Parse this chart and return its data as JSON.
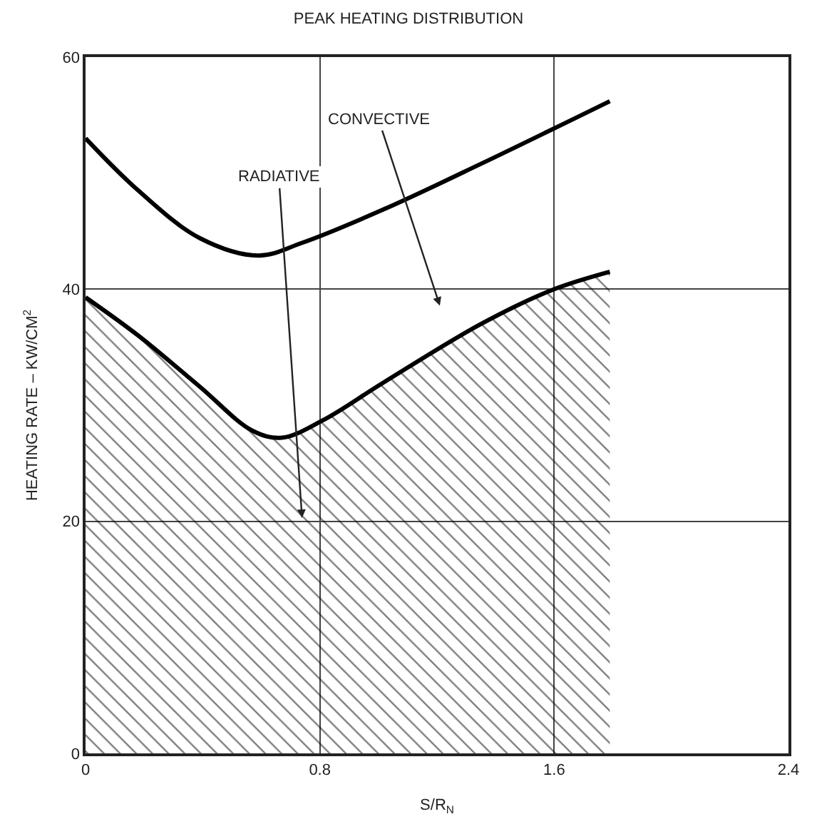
{
  "chart_data": {
    "type": "line",
    "title": "PEAK HEATING DISTRIBUTION",
    "xlabel": "S/R$_{N}$",
    "ylabel": "HEATING RATE – KW/CM$^{2}$",
    "series": [
      {
        "color": "#000000",
        "x": [
          0,
          0.18,
          0.39,
          0.59,
          0.74,
          1.02,
          1.35,
          1.79
        ],
        "values": [
          53,
          48.5,
          44.4,
          42.9,
          44,
          46.9,
          50.8,
          56.2
        ]
      },
      {
        "type": "area",
        "color": "#000000",
        "x": [
          0,
          0.18,
          0.39,
          0.57,
          0.67,
          0.81,
          1.02,
          1.35,
          1.59,
          1.79
        ],
        "values": [
          39.3,
          36,
          31.6,
          27.8,
          27.2,
          28.7,
          32,
          37,
          39.9,
          41.5
        ]
      }
    ],
    "annotations": [
      "CONVECTIVE",
      "RADIATIVE"
    ],
    "xlim": [
      0,
      2.4
    ],
    "xticks": [
      0,
      0.8,
      1.6,
      2.4
    ],
    "ylim": [
      0,
      60
    ],
    "yticks": [
      0,
      20,
      40,
      60
    ],
    "grid": true
  }
}
